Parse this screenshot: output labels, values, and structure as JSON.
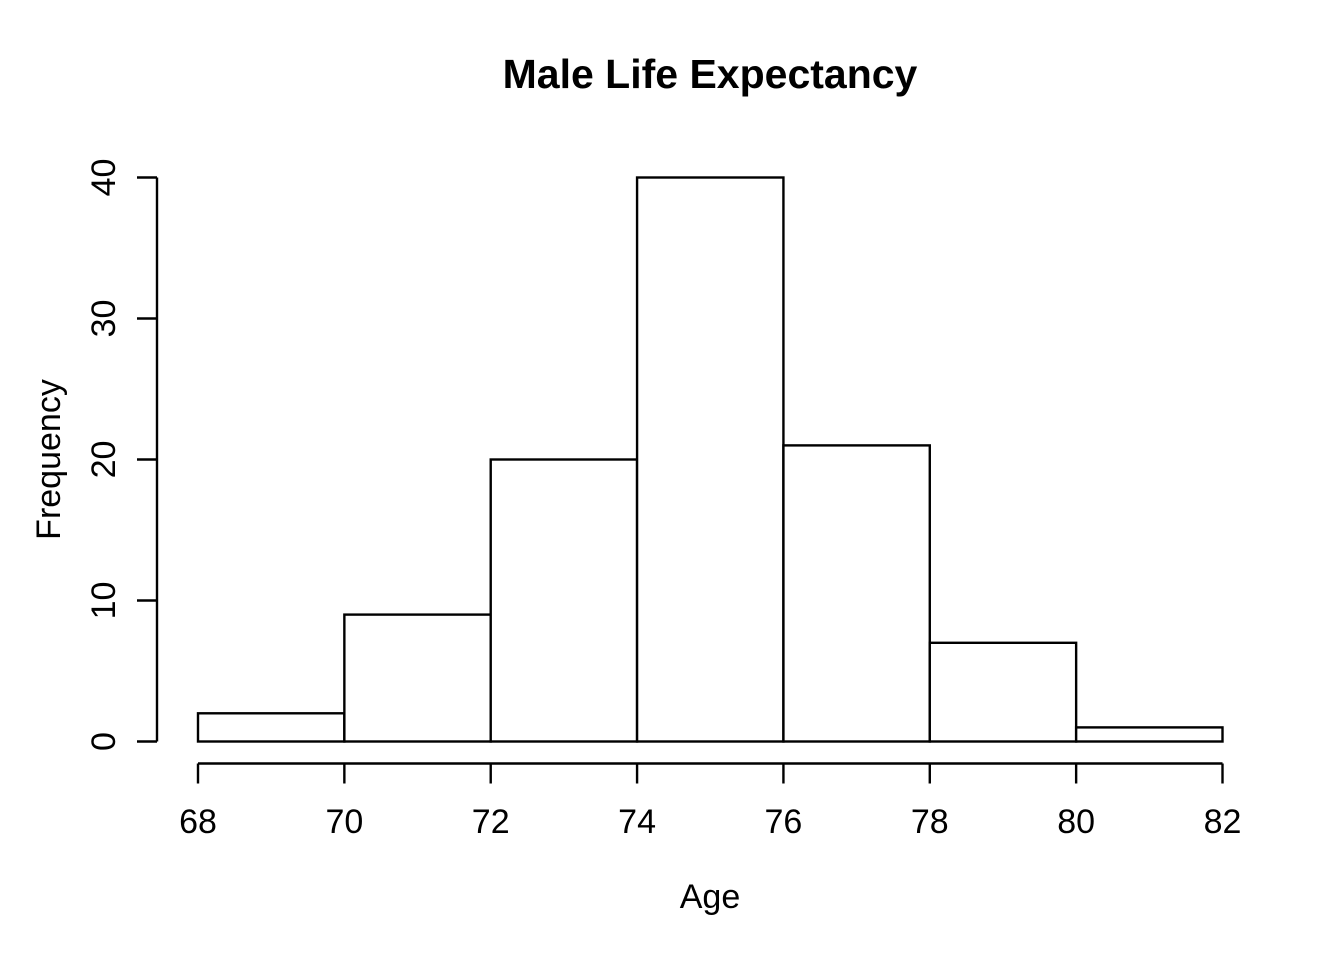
{
  "chart_data": {
    "type": "bar",
    "subtype": "histogram",
    "title": "Male Life Expectancy",
    "xlabel": "Age",
    "ylabel": "Frequency",
    "bin_edges": [
      68,
      70,
      72,
      74,
      76,
      78,
      80,
      82
    ],
    "counts": [
      2,
      9,
      20,
      40,
      21,
      7,
      1
    ],
    "x_ticks": [
      68,
      70,
      72,
      74,
      76,
      78,
      80,
      82
    ],
    "y_ticks": [
      0,
      10,
      20,
      30,
      40
    ],
    "xlim": [
      68,
      82
    ],
    "ylim": [
      0,
      40
    ],
    "grid": false,
    "legend_position": "none",
    "colors": {
      "background": "#FFFFFF",
      "bar_fill": "#FFFFFF",
      "bar_stroke": "#000000",
      "axis": "#000000",
      "text": "#000000"
    }
  }
}
